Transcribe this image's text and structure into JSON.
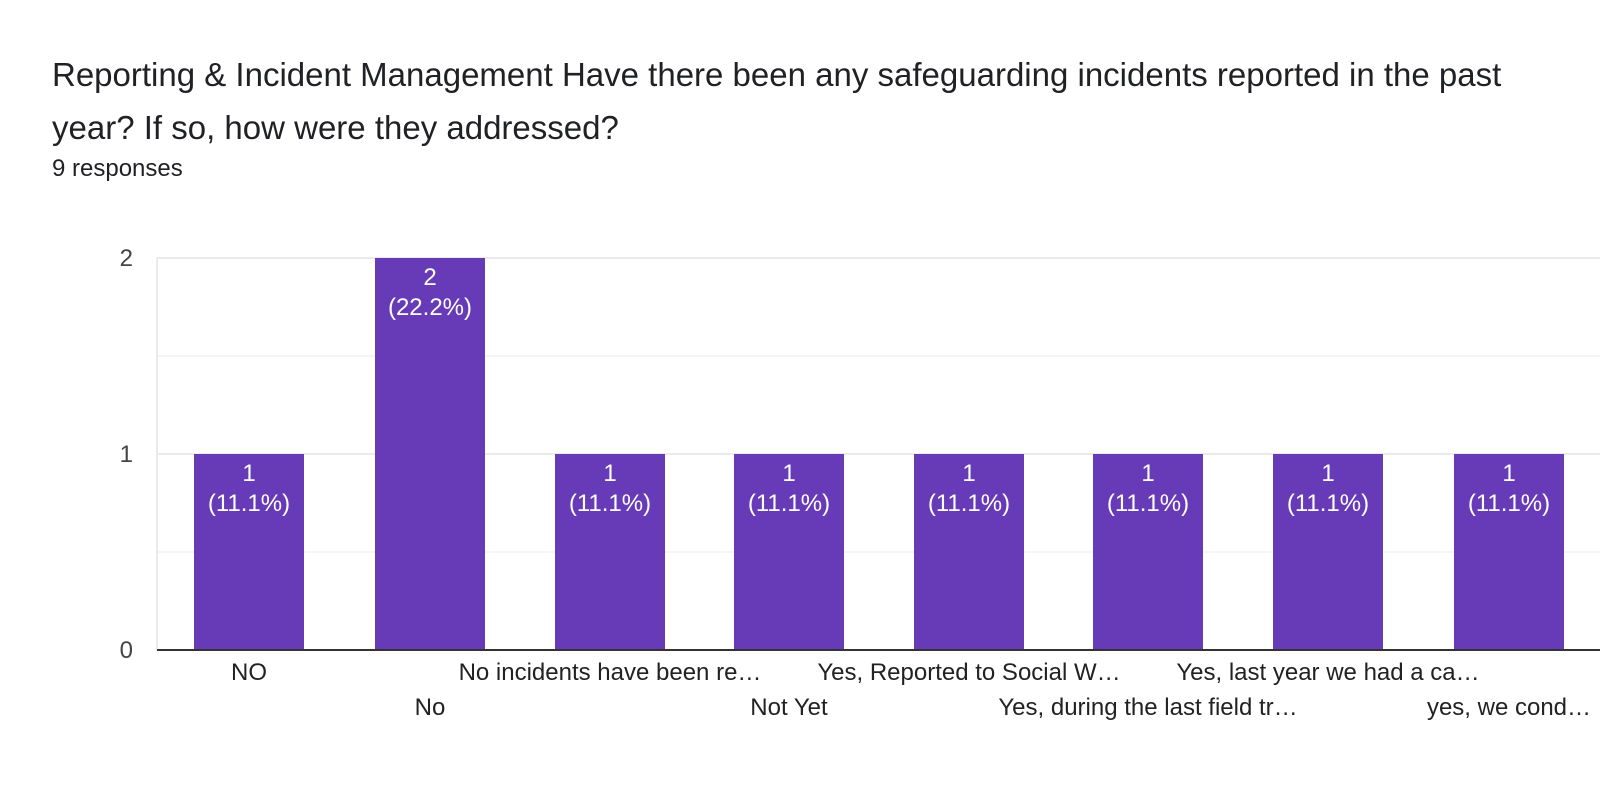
{
  "question": {
    "title": "Reporting & Incident Management Have there been any safeguarding incidents reported in the past year? If so, how were they addressed?",
    "responses": "9 responses"
  },
  "colors": {
    "bar": "#673ab7",
    "grid": "#ebebeb",
    "axis": "#333333"
  },
  "chart_data": {
    "type": "bar",
    "title": "",
    "xlabel": "",
    "ylabel": "",
    "ylim": [
      0,
      2
    ],
    "yticks": [
      "0",
      "1",
      "2"
    ],
    "categories": [
      "NO",
      "No",
      "No incidents have been re…",
      "Not Yet",
      "Yes, Reported to Social W…",
      "Yes, during the last field tr…",
      "Yes, last year we had a ca…",
      "yes, we cond…"
    ],
    "values": [
      1,
      2,
      1,
      1,
      1,
      1,
      1,
      1
    ],
    "data_labels": [
      [
        "1",
        "(11.1%)"
      ],
      [
        "2",
        "(22.2%)"
      ],
      [
        "1",
        "(11.1%)"
      ],
      [
        "1",
        "(11.1%)"
      ],
      [
        "1",
        "(11.1%)"
      ],
      [
        "1",
        "(11.1%)"
      ],
      [
        "1",
        "(11.1%)"
      ],
      [
        "1",
        "(11.1%)"
      ]
    ]
  }
}
